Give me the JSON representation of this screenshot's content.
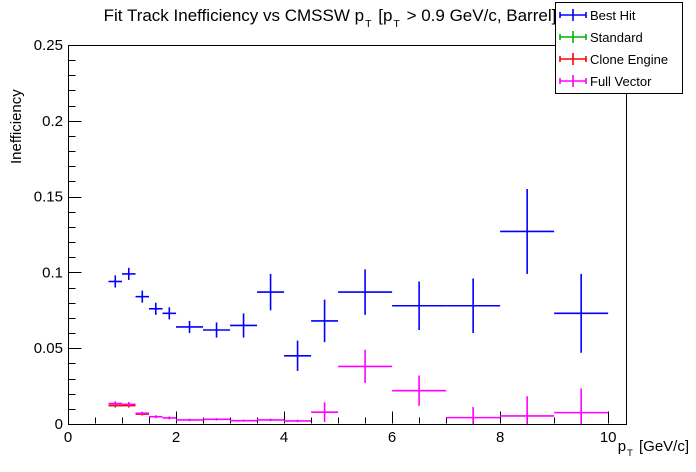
{
  "title_parts": {
    "prefix": "Fit Track Inefficiency vs CMSSW p",
    "sub1": "T",
    "mid": " [p",
    "sub2": "T",
    "suffix": " > 0.9 GeV/c, Barrel]"
  },
  "xlabel_parts": {
    "base": "p",
    "sub": "T",
    "unit": " [GeV/c]"
  },
  "chart_data": {
    "type": "scatter",
    "title": "Fit Track Inefficiency vs CMSSW p_T [p_T > 0.9 GeV/c, Barrel]",
    "xlabel": "p_T [GeV/c]",
    "ylabel": "Inefficiency",
    "xlim": [
      0,
      10.33
    ],
    "ylim": [
      0,
      0.25
    ],
    "grid": false,
    "legend_position": "top-right",
    "x_major_ticks": [
      0,
      2,
      4,
      6,
      8,
      10
    ],
    "x_tick_labels": [
      "0",
      "2",
      "4",
      "6",
      "8",
      "10"
    ],
    "x_minor_step": 0.5,
    "y_major_ticks": [
      0,
      0.05,
      0.1,
      0.15,
      0.2,
      0.25
    ],
    "y_tick_labels": [
      "0",
      "0.05",
      "0.1",
      "0.15",
      "0.2",
      "0.25"
    ],
    "y_minor_step": 0.01,
    "point_format": "[x, y, xerr, yerr]",
    "series": [
      {
        "name": "Best Hit",
        "color": "#0000ff",
        "points": [
          [
            0.875,
            0.094,
            0.125,
            0.004
          ],
          [
            1.125,
            0.099,
            0.125,
            0.004
          ],
          [
            1.375,
            0.084,
            0.125,
            0.004
          ],
          [
            1.625,
            0.076,
            0.125,
            0.004
          ],
          [
            1.875,
            0.073,
            0.125,
            0.004
          ],
          [
            2.25,
            0.064,
            0.25,
            0.004
          ],
          [
            2.75,
            0.062,
            0.25,
            0.005
          ],
          [
            3.25,
            0.065,
            0.25,
            0.008
          ],
          [
            3.75,
            0.087,
            0.25,
            0.012
          ],
          [
            4.25,
            0.045,
            0.25,
            0.01
          ],
          [
            4.75,
            0.068,
            0.25,
            0.014
          ],
          [
            5.5,
            0.087,
            0.5,
            0.015
          ],
          [
            6.5,
            0.078,
            0.5,
            0.016
          ],
          [
            7.5,
            0.078,
            0.5,
            0.018
          ],
          [
            8.5,
            0.127,
            0.5,
            0.028
          ],
          [
            9.5,
            0.073,
            0.5,
            0.026
          ]
        ]
      },
      {
        "name": "Standard",
        "color": "#00b400",
        "points": [
          [
            0.875,
            0.0122,
            0.125,
            0.0013
          ],
          [
            1.125,
            0.0122,
            0.125,
            0.0013
          ],
          [
            1.375,
            0.0066,
            0.125,
            0.001
          ]
        ]
      },
      {
        "name": "Clone Engine",
        "color": "#ff0000",
        "points": [
          [
            0.875,
            0.0122,
            0.125,
            0.0013
          ],
          [
            1.125,
            0.0122,
            0.125,
            0.0013
          ],
          [
            1.375,
            0.0066,
            0.125,
            0.001
          ]
        ]
      },
      {
        "name": "Full Vector",
        "color": "#ff00ff",
        "points": [
          [
            0.875,
            0.0135,
            0.125,
            0.0015
          ],
          [
            1.125,
            0.013,
            0.125,
            0.0015
          ],
          [
            1.375,
            0.0071,
            0.125,
            0.001
          ],
          [
            1.625,
            0.0048,
            0.125,
            0.001
          ],
          [
            1.875,
            0.004,
            0.125,
            0.001
          ],
          [
            2.25,
            0.0027,
            0.25,
            0.0008
          ],
          [
            2.75,
            0.0031,
            0.25,
            0.0008
          ],
          [
            3.25,
            0.0022,
            0.25,
            0.0007
          ],
          [
            3.75,
            0.0027,
            0.25,
            0.0008
          ],
          [
            4.25,
            0.002,
            0.25,
            0.0008
          ],
          [
            4.75,
            0.0078,
            0.25,
            0.0065
          ],
          [
            5.5,
            0.038,
            0.5,
            0.011
          ],
          [
            6.5,
            0.022,
            0.5,
            0.01
          ],
          [
            7.5,
            0.0042,
            0.5,
            0.007
          ],
          [
            8.5,
            0.0053,
            0.5,
            0.013
          ],
          [
            9.5,
            0.0075,
            0.5,
            0.016
          ]
        ]
      }
    ]
  }
}
